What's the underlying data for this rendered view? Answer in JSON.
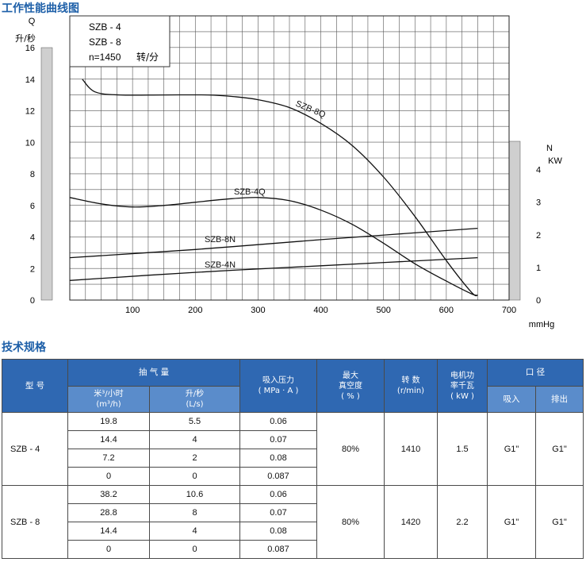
{
  "titles": {
    "chart": "工作性能曲线图",
    "specs": "技术规格"
  },
  "chart_data": {
    "type": "line",
    "legend": {
      "lines": [
        "SZB - 4",
        "SZB - 8"
      ],
      "speed": "n=1450",
      "speed_unit": "转/分"
    },
    "left_axis": {
      "name": "Q",
      "unit": "升/秒",
      "ticks": [
        0,
        2,
        4,
        6,
        8,
        10,
        12,
        14,
        16
      ],
      "range": [
        0,
        16
      ]
    },
    "right_axis": {
      "name": "N",
      "unit": "KW",
      "ticks": [
        0,
        1,
        2,
        3,
        4
      ],
      "range": [
        0,
        4.5
      ]
    },
    "x_axis": {
      "unit": "mmHg",
      "ticks": [
        100,
        200,
        300,
        400,
        500,
        600,
        700
      ],
      "range": [
        0,
        700
      ]
    },
    "grid": true,
    "series": [
      {
        "name": "SZB-8Q",
        "axis": "left",
        "x": [
          20,
          40,
          80,
          150,
          220,
          260,
          300,
          350,
          400,
          450,
          500,
          550,
          600,
          640,
          650
        ],
        "y": [
          14.0,
          13.2,
          13.0,
          13.0,
          13.0,
          12.9,
          12.7,
          12.2,
          11.2,
          9.8,
          7.8,
          5.3,
          2.5,
          0.5,
          0.3
        ]
      },
      {
        "name": "SZB-4Q",
        "axis": "left",
        "x": [
          0,
          50,
          100,
          150,
          200,
          250,
          300,
          350,
          400,
          450,
          500,
          550,
          600,
          640,
          650
        ],
        "y": [
          6.5,
          6.1,
          5.9,
          6.0,
          6.2,
          6.4,
          6.5,
          6.3,
          5.7,
          4.8,
          3.6,
          2.3,
          1.2,
          0.4,
          0.3
        ]
      },
      {
        "name": "SZB-8N",
        "axis": "right",
        "x": [
          0,
          200,
          400,
          650
        ],
        "y": [
          1.3,
          1.55,
          1.85,
          2.2
        ]
      },
      {
        "name": "SZB-4N",
        "axis": "right",
        "x": [
          0,
          200,
          400,
          650
        ],
        "y": [
          0.6,
          0.85,
          1.05,
          1.3
        ]
      }
    ],
    "labels": [
      {
        "text": "SZB-8Q",
        "series": "SZB-8Q"
      },
      {
        "text": "SZB-4Q",
        "series": "SZB-4Q"
      },
      {
        "text": "SZB-8N",
        "series": "SZB-8N"
      },
      {
        "text": "SZB-4N",
        "series": "SZB-4N"
      }
    ]
  },
  "specs": {
    "headers": {
      "model": "型  号",
      "pumping": "抽  气  量",
      "pumping_m3": "米³/小时",
      "pumping_m3_unit": "(m³/h)",
      "pumping_ls": "升/秒",
      "pumping_ls_unit": "(L/s)",
      "pressure": "吸入压力",
      "pressure_unit": "( MPa · A )",
      "vacuum1": "最大",
      "vacuum2": "真空度",
      "vacuum_unit": "( % )",
      "speed": "转  数",
      "speed_unit": "(r/min)",
      "power1": "电机功",
      "power2": "率千瓦",
      "power_unit": "( kW )",
      "port": "口  径",
      "inlet": "吸入",
      "outlet": "排出"
    },
    "models": [
      {
        "name": "SZB - 4",
        "rows": [
          {
            "m3h": "19.8",
            "ls": "5.5",
            "pressure": "0.06"
          },
          {
            "m3h": "14.4",
            "ls": "4",
            "pressure": "0.07"
          },
          {
            "m3h": "7.2",
            "ls": "2",
            "pressure": "0.08"
          },
          {
            "m3h": "0",
            "ls": "0",
            "pressure": "0.087"
          }
        ],
        "vacuum": "80%",
        "speed": "1410",
        "power": "1.5",
        "inlet": "G1\"",
        "outlet": "G1\""
      },
      {
        "name": "SZB - 8",
        "rows": [
          {
            "m3h": "38.2",
            "ls": "10.6",
            "pressure": "0.06"
          },
          {
            "m3h": "28.8",
            "ls": "8",
            "pressure": "0.07"
          },
          {
            "m3h": "14.4",
            "ls": "4",
            "pressure": "0.08"
          },
          {
            "m3h": "0",
            "ls": "0",
            "pressure": "0.087"
          }
        ],
        "vacuum": "80%",
        "speed": "1420",
        "power": "2.2",
        "inlet": "G1\"",
        "outlet": "G1\""
      }
    ]
  }
}
